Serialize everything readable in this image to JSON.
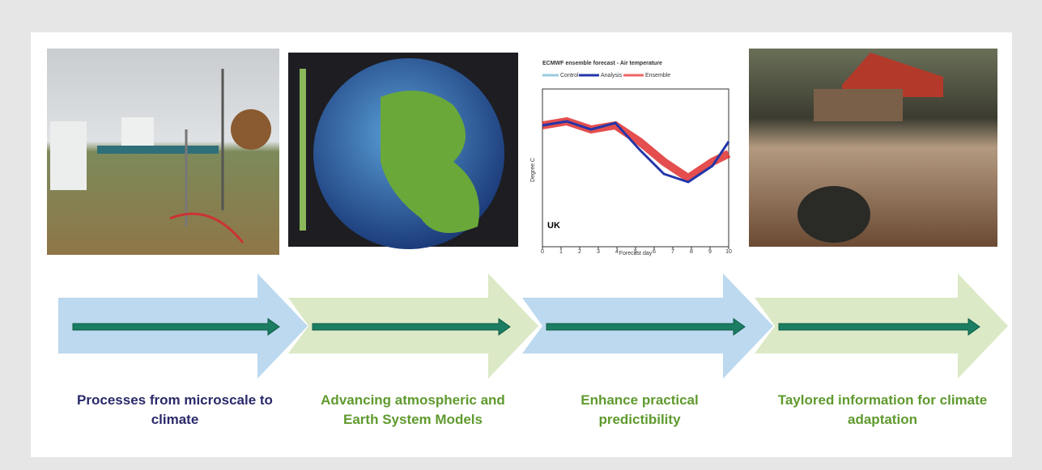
{
  "forecast_panel": {
    "title": "ECMWF ensemble forecast - Air temperature",
    "legend": [
      "Control",
      "Analysis",
      "Ensemble"
    ],
    "region": "UK",
    "x_label": "Forecast day",
    "y_label": "Degree C",
    "xticks": [
      0,
      1,
      2,
      3,
      4,
      5,
      6,
      7,
      8,
      9,
      10
    ]
  },
  "stages": [
    {
      "label": [
        "Processes from microscale to",
        "climate"
      ]
    },
    {
      "label": [
        "Advancing atmospheric and",
        "Earth System Models"
      ]
    },
    {
      "label": [
        "Enhance practical",
        "predictibility"
      ]
    },
    {
      "label": [
        "Taylored information for climate",
        "adaptation"
      ]
    }
  ]
}
